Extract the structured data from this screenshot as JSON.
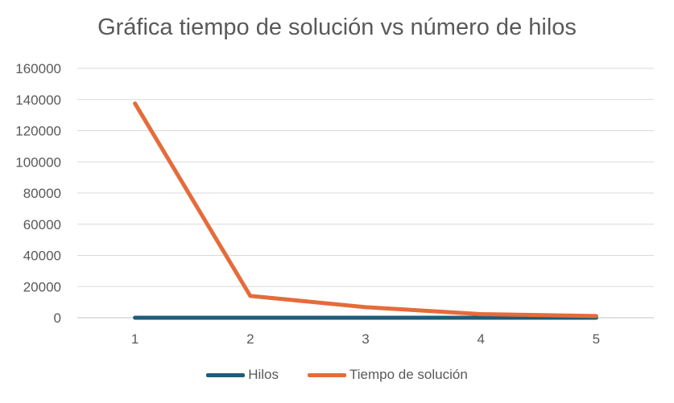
{
  "chart_data": {
    "type": "line",
    "title": "Gráfica tiempo de solución vs número de hilos",
    "categories": [
      "1",
      "2",
      "3",
      "4",
      "5"
    ],
    "series": [
      {
        "name": "Hilos",
        "values": [
          1,
          2,
          3,
          4,
          5
        ],
        "color": "#1f5c7a"
      },
      {
        "name": "Tiempo de solución",
        "values": [
          137500,
          14000,
          6800,
          2300,
          1100
        ],
        "color": "#e46c3a"
      }
    ],
    "ylim": [
      0,
      160000
    ],
    "y_ticks": [
      "0",
      "20000",
      "40000",
      "60000",
      "80000",
      "100000",
      "120000",
      "140000",
      "160000"
    ],
    "grid": true,
    "legend_position": "bottom"
  }
}
